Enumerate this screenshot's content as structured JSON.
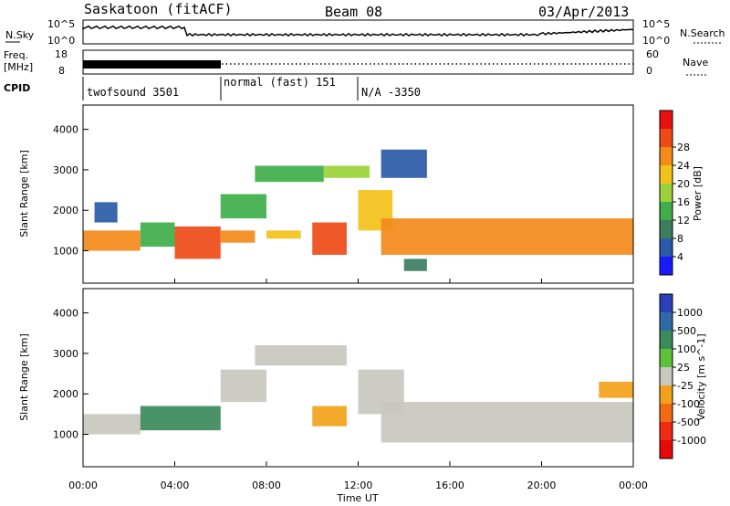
{
  "header": {
    "station": "Saskatoon (fitACF)",
    "beam": "Beam 08",
    "date": "03/Apr/2013"
  },
  "top_panels": {
    "nsky_label": "N.Sky",
    "nsky_ticks": [
      "10^5",
      "10^0"
    ],
    "nsearch_label": "N.Search",
    "nsearch_ticks": [
      "10^5",
      "10^0"
    ],
    "freq_label_1": "Freq.",
    "freq_label_2": "[MHz]",
    "freq_ticks": [
      "18",
      "8"
    ],
    "nave_label": "Nave",
    "nave_ticks": [
      "60",
      "0"
    ],
    "cpid_label": "CPID"
  },
  "cpid_segments": [
    {
      "name": "twofsound 3501",
      "start_hour": 0,
      "end_hour": 6.0
    },
    {
      "name": "normal (fast) 151",
      "start_hour": 6.0,
      "end_hour": 12.0
    },
    {
      "name": "N/A -3350",
      "start_hour": 12.0,
      "end_hour": 24.0
    }
  ],
  "chart_data": [
    {
      "type": "heatmap",
      "name": "power",
      "xlabel": "Time UT",
      "ylabel": "Slant Range [km]",
      "x_ticks": [
        "00:00",
        "04:00",
        "08:00",
        "12:00",
        "16:00",
        "20:00",
        "00:00"
      ],
      "xlim": [
        0,
        24
      ],
      "y_ticks": [
        "1000",
        "2000",
        "3000",
        "4000"
      ],
      "ylim": [
        200,
        4600
      ],
      "colorbar": {
        "label": "Power [dB]",
        "ticks": [
          "4",
          "8",
          "12",
          "16",
          "20",
          "24",
          "28"
        ],
        "range": [
          0,
          32
        ],
        "colors": [
          "#1a1aff",
          "#2a5aa8",
          "#3c7d5e",
          "#3fae4a",
          "#9bd23a",
          "#f2c21a",
          "#f38a1a",
          "#ee4a16",
          "#e81010"
        ]
      },
      "regions": [
        {
          "t0": 0.0,
          "t1": 2.5,
          "r0": 1000,
          "r1": 1500,
          "power": 22
        },
        {
          "t0": 0.5,
          "t1": 1.5,
          "r0": 1700,
          "r1": 2200,
          "power": 6
        },
        {
          "t0": 2.5,
          "t1": 4.0,
          "r0": 1100,
          "r1": 1700,
          "power": 12
        },
        {
          "t0": 4.0,
          "t1": 6.0,
          "r0": 800,
          "r1": 1600,
          "power": 28
        },
        {
          "t0": 6.0,
          "t1": 7.5,
          "r0": 1200,
          "r1": 1500,
          "power": 24
        },
        {
          "t0": 6.0,
          "t1": 8.0,
          "r0": 1800,
          "r1": 2400,
          "power": 12
        },
        {
          "t0": 7.5,
          "t1": 10.5,
          "r0": 2700,
          "r1": 3100,
          "power": 14
        },
        {
          "t0": 8.0,
          "t1": 9.5,
          "r0": 1300,
          "r1": 1500,
          "power": 18
        },
        {
          "t0": 10.0,
          "t1": 11.5,
          "r0": 900,
          "r1": 1700,
          "power": 26
        },
        {
          "t0": 10.5,
          "t1": 12.5,
          "r0": 2800,
          "r1": 3100,
          "power": 16
        },
        {
          "t0": 12.0,
          "t1": 13.5,
          "r0": 1500,
          "r1": 2500,
          "power": 20
        },
        {
          "t0": 13.0,
          "t1": 24.0,
          "r0": 900,
          "r1": 1800,
          "power": 24
        },
        {
          "t0": 13.0,
          "t1": 15.0,
          "r0": 2800,
          "r1": 3500,
          "power": 6
        },
        {
          "t0": 14.0,
          "t1": 15.0,
          "r0": 500,
          "r1": 800,
          "power": 8
        }
      ]
    },
    {
      "type": "heatmap",
      "name": "velocity",
      "xlabel": "Time UT",
      "ylabel": "Slant Range [km]",
      "x_ticks": [
        "00:00",
        "04:00",
        "08:00",
        "12:00",
        "16:00",
        "20:00",
        "00:00"
      ],
      "xlim": [
        0,
        24
      ],
      "y_ticks": [
        "1000",
        "2000",
        "3000",
        "4000"
      ],
      "ylim": [
        200,
        4600
      ],
      "colorbar": {
        "label": "Velocity [m s^-1]",
        "ticks": [
          "1000",
          "500",
          "100",
          "25",
          "-25",
          "-100",
          "-500",
          "-1000"
        ],
        "colors": [
          "#2a3fb8",
          "#2e6aa8",
          "#3a8a5a",
          "#5ec13a",
          "#c8c8c0",
          "#f2a21a",
          "#f36a14",
          "#ee2a12",
          "#e80808"
        ]
      },
      "regions": [
        {
          "t0": 0.0,
          "t1": 2.5,
          "r0": 1000,
          "r1": 1500,
          "velocity": 0
        },
        {
          "t0": 2.5,
          "t1": 6.0,
          "r0": 1100,
          "r1": 1700,
          "velocity": 200
        },
        {
          "t0": 6.0,
          "t1": 8.0,
          "r0": 1800,
          "r1": 2600,
          "velocity": 0
        },
        {
          "t0": 7.5,
          "t1": 11.5,
          "r0": 2700,
          "r1": 3200,
          "velocity": 0
        },
        {
          "t0": 10.0,
          "t1": 11.5,
          "r0": 1200,
          "r1": 1700,
          "velocity": -300
        },
        {
          "t0": 12.0,
          "t1": 14.0,
          "r0": 1500,
          "r1": 2600,
          "velocity": 0
        },
        {
          "t0": 13.0,
          "t1": 24.0,
          "r0": 800,
          "r1": 1800,
          "velocity": 0
        },
        {
          "t0": 22.5,
          "t1": 24.0,
          "r0": 1900,
          "r1": 2300,
          "velocity": -150
        }
      ]
    }
  ]
}
